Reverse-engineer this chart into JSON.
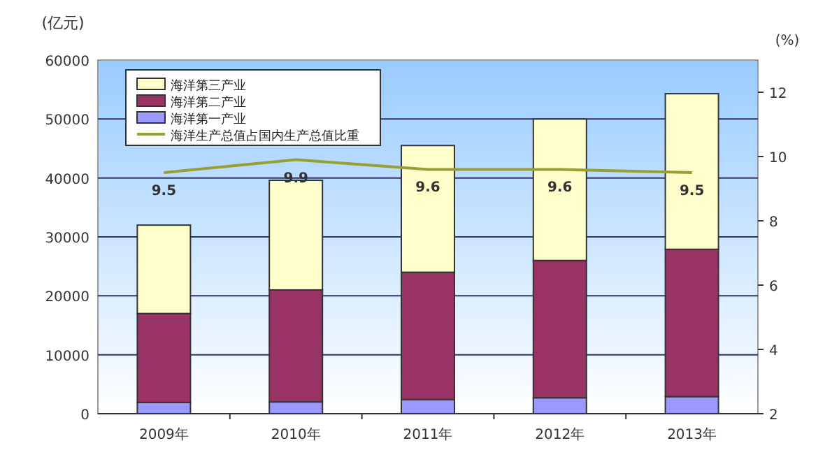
{
  "chart_data": {
    "type": "bar",
    "stacked": true,
    "ylabel": "(亿元)",
    "y2label": "(%)",
    "categories": [
      "2009年",
      "2010年",
      "2011年",
      "2012年",
      "2013年"
    ],
    "ylim": [
      0,
      60000
    ],
    "yticks": [
      0,
      10000,
      20000,
      30000,
      40000,
      50000,
      60000
    ],
    "y2lim": [
      2,
      13
    ],
    "y2ticks": [
      2,
      4,
      6,
      8,
      10,
      12
    ],
    "grid": "y",
    "legend": "top left",
    "series": [
      {
        "name": "海洋第一产业",
        "color": "#9999ff",
        "values": [
          1900,
          2000,
          2400,
          2700,
          2900
        ]
      },
      {
        "name": "海洋第二产业",
        "color": "#993366",
        "values": [
          15100,
          19000,
          21600,
          23300,
          25000
        ]
      },
      {
        "name": "海洋第三产业",
        "color": "#ffffcc",
        "values": [
          15000,
          18600,
          21500,
          24000,
          26400
        ]
      },
      {
        "name": "海洋生产总值占国内生产总值比重",
        "type": "line",
        "axis": "y2",
        "color": "#99a033",
        "values": [
          9.5,
          9.9,
          9.6,
          9.6,
          9.5
        ],
        "value_labels": [
          "9.5",
          "9.9",
          "9.6",
          "9.6",
          "9.5"
        ]
      }
    ]
  }
}
